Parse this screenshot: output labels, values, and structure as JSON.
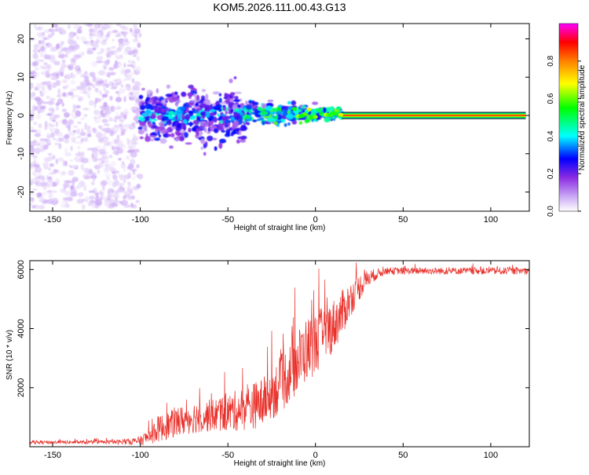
{
  "figure_title": "KOM5.2026.111.00.43.G13",
  "colors": {
    "snr_line": "#e8302a",
    "axis": "#000000",
    "tone_line": "#ff2d2d"
  },
  "chart_data": [
    {
      "type": "heatmap",
      "name": "spectrogram",
      "title": "KOM5.2026.111.00.43.G13",
      "xlabel": "Height of straight line (km)",
      "ylabel": "Frequency (Hz)",
      "xlim": [
        -163,
        122
      ],
      "ylim": [
        -25,
        24
      ],
      "xticks": [
        -150,
        -100,
        -50,
        0,
        50,
        100
      ],
      "yticks": [
        -20,
        -10,
        0,
        10,
        20
      ],
      "colorbar": {
        "label": "Normalized spectral amplitude",
        "range": [
          0,
          1
        ],
        "ticks": [
          "0.0",
          "0.2",
          "0.4",
          "0.6",
          "0.8"
        ],
        "colormap": [
          "#ffffff",
          "#c9a6f5",
          "#8a2be2",
          "#0000ff",
          "#00ffff",
          "#00ff00",
          "#ffff00",
          "#ff8000",
          "#ff0000",
          "#ff00ff"
        ]
      },
      "regions": [
        {
          "x": [
            -163,
            -100
          ],
          "freq_spread_hz": 24,
          "amplitude": 0.1,
          "note": "scattered noise"
        },
        {
          "x": [
            -100,
            -40
          ],
          "freq_spread_hz": 6,
          "amplitude": 0.3
        },
        {
          "x": [
            -40,
            15
          ],
          "freq_spread_hz": 3,
          "amplitude": 0.4
        },
        {
          "x": [
            15,
            120
          ],
          "freq_hz": 0,
          "amplitude": 0.85,
          "note": "steady carrier tone"
        }
      ]
    },
    {
      "type": "line",
      "name": "snr",
      "xlabel": "Height of straight line (km)",
      "ylabel": "SNR (10 * v/v)",
      "xlim": [
        -163,
        122
      ],
      "ylim": [
        0,
        6300
      ],
      "xticks": [
        -150,
        -100,
        -50,
        0,
        50,
        100
      ],
      "yticks": [
        2000,
        4000,
        6000
      ],
      "series": [
        {
          "name": "SNR",
          "x": [
            -163,
            -150,
            -130,
            -110,
            -100,
            -95,
            -90,
            -80,
            -70,
            -60,
            -50,
            -40,
            -30,
            -25,
            -20,
            -15,
            -10,
            -5,
            0,
            5,
            10,
            15,
            20,
            25,
            30,
            35,
            40,
            50,
            60,
            70,
            80,
            90,
            100,
            110,
            122
          ],
          "values": [
            150,
            150,
            150,
            160,
            200,
            350,
            600,
            800,
            1000,
            1050,
            1150,
            1300,
            1500,
            1800,
            2100,
            2500,
            2900,
            3300,
            3500,
            3800,
            4100,
            4500,
            5000,
            5400,
            5700,
            5850,
            5950,
            5950,
            5950,
            5950,
            5950,
            5950,
            5950,
            5950,
            5950
          ],
          "noise_amplitude": [
            60,
            60,
            60,
            80,
            150,
            300,
            450,
            500,
            550,
            550,
            650,
            750,
            850,
            900,
            1000,
            1050,
            1100,
            1100,
            1050,
            1000,
            900,
            800,
            600,
            450,
            300,
            180,
            120,
            120,
            120,
            120,
            120,
            120,
            120,
            120,
            120
          ]
        }
      ]
    }
  ]
}
